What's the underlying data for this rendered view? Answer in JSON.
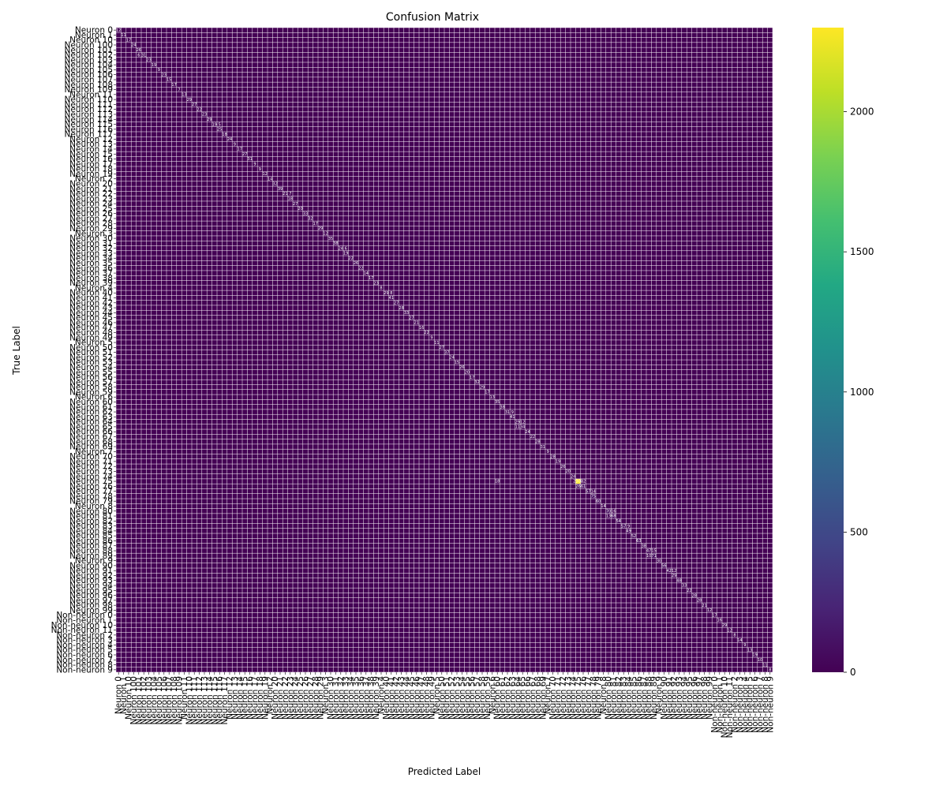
{
  "chart_data": {
    "type": "heatmap",
    "title": "Confusion Matrix",
    "xlabel": "Predicted Label",
    "ylabel": "True Label",
    "labels": [
      "Neuron 0",
      "Neuron 1",
      "Neuron 10",
      "Neuron 100",
      "Neuron 101",
      "Neuron 102",
      "Neuron 103",
      "Neuron 104",
      "Neuron 105",
      "Neuron 106",
      "Neuron 107",
      "Neuron 108",
      "Neuron 109",
      "Neuron 11",
      "Neuron 110",
      "Neuron 111",
      "Neuron 112",
      "Neuron 113",
      "Neuron 114",
      "Neuron 115",
      "Neuron 116",
      "Neuron 117",
      "Neuron 12",
      "Neuron 13",
      "Neuron 14",
      "Neuron 15",
      "Neuron 16",
      "Neuron 17",
      "Neuron 18",
      "Neuron 19",
      "Neuron 2",
      "Neuron 20",
      "Neuron 21",
      "Neuron 22",
      "Neuron 23",
      "Neuron 24",
      "Neuron 25",
      "Neuron 26",
      "Neuron 27",
      "Neuron 28",
      "Neuron 29",
      "Neuron 3",
      "Neuron 30",
      "Neuron 31",
      "Neuron 32",
      "Neuron 33",
      "Neuron 34",
      "Neuron 35",
      "Neuron 36",
      "Neuron 37",
      "Neuron 38",
      "Neuron 39",
      "Neuron 4",
      "Neuron 40",
      "Neuron 41",
      "Neuron 42",
      "Neuron 43",
      "Neuron 44",
      "Neuron 45",
      "Neuron 46",
      "Neuron 47",
      "Neuron 48",
      "Neuron 49",
      "Neuron 5",
      "Neuron 50",
      "Neuron 51",
      "Neuron 52",
      "Neuron 53",
      "Neuron 54",
      "Neuron 55",
      "Neuron 56",
      "Neuron 57",
      "Neuron 58",
      "Neuron 59",
      "Neuron 6",
      "Neuron 60",
      "Neuron 61",
      "Neuron 62",
      "Neuron 63",
      "Neuron 64",
      "Neuron 65",
      "Neuron 66",
      "Neuron 67",
      "Neuron 68",
      "Neuron 69",
      "Neuron 7",
      "Neuron 70",
      "Neuron 71",
      "Neuron 72",
      "Neuron 73",
      "Neuron 74",
      "Neuron 75",
      "Neuron 76",
      "Neuron 77",
      "Neuron 78",
      "Neuron 79",
      "Neuron 8",
      "Neuron 80",
      "Neuron 81",
      "Neuron 82",
      "Neuron 83",
      "Neuron 84",
      "Neuron 85",
      "Neuron 86",
      "Neuron 87",
      "Neuron 88",
      "Neuron 89",
      "Neuron 9",
      "Neuron 90",
      "Neuron 91",
      "Neuron 92",
      "Neuron 93",
      "Neuron 94",
      "Neuron 95",
      "Neuron 96",
      "Neuron 97",
      "Neuron 98",
      "Neuron 99",
      "Non-neuron 0",
      "Non-neuron 1",
      "Non-neuron 10",
      "Non-neuron 11",
      "Non-neuron 2",
      "Non-neuron 3",
      "Non-neuron 4",
      "Non-neuron 5",
      "Non-neuron 6",
      "Non-neuron 7",
      "Non-neuron 8",
      "Non-neuron 9"
    ],
    "diagonal_values": [
      12,
      11,
      17,
      24,
      26,
      31,
      23,
      19,
      9,
      23,
      15,
      17,
      7,
      13,
      29,
      27,
      22,
      23,
      29,
      19,
      25,
      18,
      24,
      9,
      17,
      27,
      31,
      9,
      9,
      12,
      14,
      32,
      39,
      21,
      18,
      27,
      20,
      33,
      32,
      17,
      29,
      12,
      35,
      38,
      24,
      19,
      22,
      26,
      22,
      14,
      17,
      23,
      8,
      29,
      41,
      27,
      28,
      33,
      27,
      21,
      16,
      22,
      9,
      11,
      27,
      37,
      24,
      15,
      26,
      20,
      17,
      32,
      29,
      17,
      13,
      35,
      38,
      31,
      41,
      29,
      34,
      24,
      22,
      28,
      31,
      9,
      28,
      19,
      26,
      20,
      24,
      2300,
      61,
      57,
      75,
      60,
      14,
      70,
      68,
      54,
      57,
      49,
      52,
      63,
      38,
      47,
      71,
      30,
      56,
      42,
      29,
      48,
      33,
      22,
      28,
      28,
      21,
      12,
      17,
      16,
      29,
      12,
      8,
      14,
      9,
      13,
      19,
      10,
      11,
      8
    ],
    "off_diagonal": [
      {
        "row": 91,
        "col": 75,
        "value": 18
      },
      {
        "row": 91,
        "col": 92,
        "value": 22
      },
      {
        "row": 92,
        "col": 91,
        "value": 26
      },
      {
        "row": 93,
        "col": 94,
        "value": 14
      },
      {
        "row": 79,
        "col": 80,
        "value": 12
      },
      {
        "row": 80,
        "col": 79,
        "value": 11
      },
      {
        "row": 97,
        "col": 98,
        "value": 16
      },
      {
        "row": 98,
        "col": 97,
        "value": 13
      },
      {
        "row": 100,
        "col": 101,
        "value": 9
      },
      {
        "row": 105,
        "col": 106,
        "value": 15
      },
      {
        "row": 106,
        "col": 105,
        "value": 10
      },
      {
        "row": 109,
        "col": 110,
        "value": 12
      },
      {
        "row": 5,
        "col": 4,
        "value": 6
      },
      {
        "row": 19,
        "col": 20,
        "value": 5
      },
      {
        "row": 33,
        "col": 34,
        "value": 7
      },
      {
        "row": 44,
        "col": 45,
        "value": 6
      },
      {
        "row": 53,
        "col": 54,
        "value": 8
      },
      {
        "row": 77,
        "col": 78,
        "value": 9
      }
    ],
    "colorbar": {
      "min": 0,
      "max": 2300,
      "ticks": [
        0,
        500,
        1000,
        1500,
        2000
      ],
      "colormap": "viridis"
    },
    "grid": true,
    "cell_border_color": "#ffffff"
  }
}
